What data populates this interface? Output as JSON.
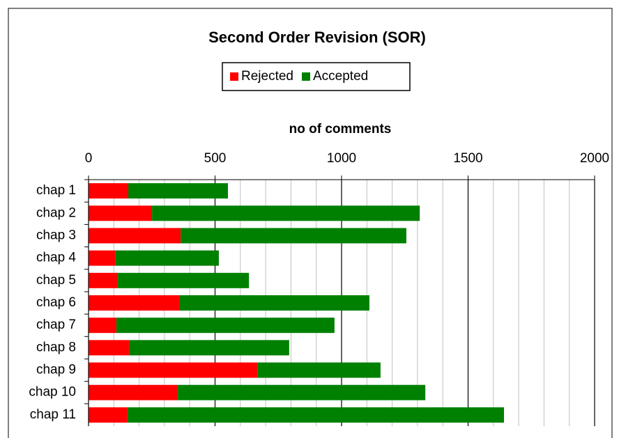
{
  "chart_data": {
    "type": "stacked-bar-horizontal",
    "title": "Second Order Revision (SOR)",
    "x_label": "no of comments",
    "categories": [
      "chap 1",
      "chap 2",
      "chap 3",
      "chap 4",
      "chap 5",
      "chap 6",
      "chap 7",
      "chap 8",
      "chap 9",
      "chap 10",
      "chap 11"
    ],
    "series": [
      {
        "name": "Rejected",
        "color": "#ff0000",
        "values": [
          157,
          251,
          364,
          105,
          116,
          358,
          110,
          160,
          669,
          353,
          154
        ]
      },
      {
        "name": "Accepted",
        "color": "#008000",
        "values": [
          394,
          1058,
          892,
          410,
          518,
          752,
          862,
          633,
          485,
          978,
          1488
        ]
      }
    ],
    "xlim": [
      0,
      2000
    ],
    "xticks": [
      0,
      500,
      1000,
      1500,
      2000
    ],
    "minor_gridlines": [
      100,
      200,
      300,
      400,
      600,
      700,
      800,
      900,
      1100,
      1200,
      1300,
      1400,
      1600,
      1700,
      1800,
      1900
    ],
    "grid": true,
    "legend": "top"
  }
}
